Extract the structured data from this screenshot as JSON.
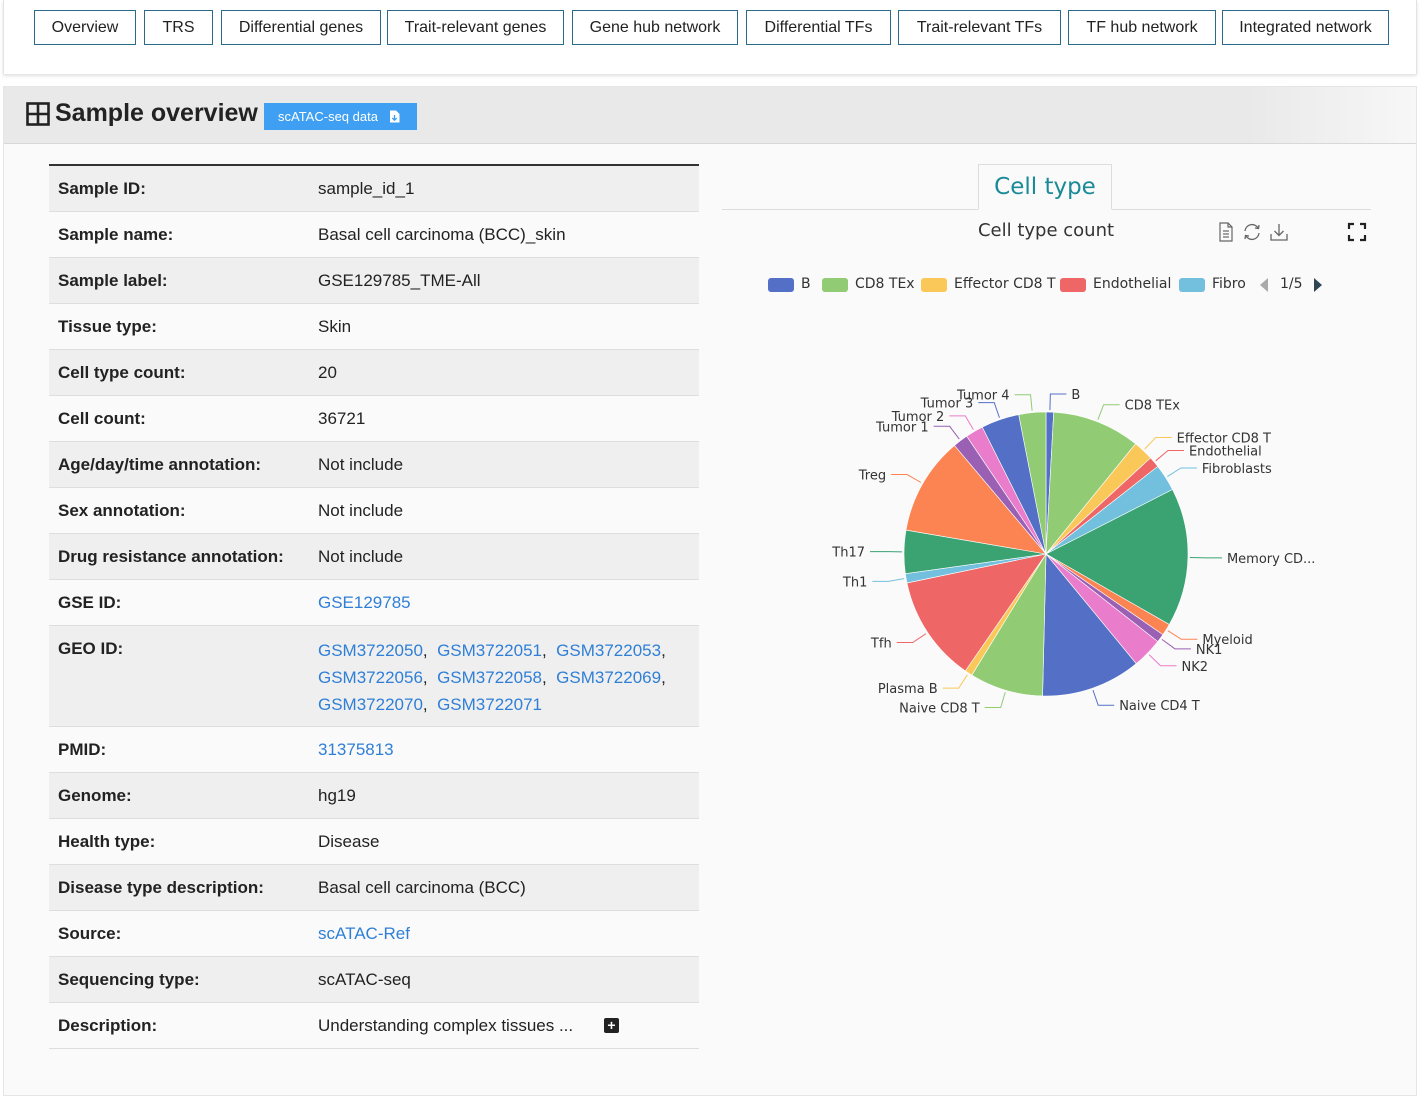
{
  "nav": [
    {
      "label": "Overview"
    },
    {
      "label": "TRS"
    },
    {
      "label": "Differential genes"
    },
    {
      "label": "Trait-relevant genes"
    },
    {
      "label": "Gene hub network"
    },
    {
      "label": "Differential TFs"
    },
    {
      "label": "Trait-relevant TFs"
    },
    {
      "label": "TF hub network"
    },
    {
      "label": "Integrated network"
    }
  ],
  "panel": {
    "title": "Sample overview",
    "data_button": "scATAC-seq data",
    "data_button_icon": "file-download-icon"
  },
  "table": {
    "rows": [
      {
        "label": "Sample ID:",
        "value": "sample_id_1"
      },
      {
        "label": "Sample name:",
        "value": "Basal cell carcinoma (BCC)_skin"
      },
      {
        "label": "Sample label:",
        "value": "GSE129785_TME-All"
      },
      {
        "label": "Tissue type:",
        "value": "Skin"
      },
      {
        "label": "Cell type count:",
        "value": "20"
      },
      {
        "label": "Cell count:",
        "value": "36721"
      },
      {
        "label": "Age/day/time annotation:",
        "value": "Not include"
      },
      {
        "label": "Sex annotation:",
        "value": "Not include"
      },
      {
        "label": "Drug resistance annotation:",
        "value": "Not include"
      },
      {
        "label": "GSE ID:",
        "value": "GSE129785"
      },
      {
        "label": "GEO ID:",
        "value": ""
      },
      {
        "label": "PMID:",
        "value": "31375813"
      },
      {
        "label": "Genome:",
        "value": "hg19"
      },
      {
        "label": "Health type:",
        "value": "Disease"
      },
      {
        "label": "Disease type description:",
        "value": "Basal cell carcinoma (BCC)"
      },
      {
        "label": "Source:",
        "value": "scATAC-Ref"
      },
      {
        "label": "Sequencing type:",
        "value": "scATAC-seq"
      },
      {
        "label": "Description:",
        "value": "Understanding complex tissues  ..."
      }
    ],
    "geo_ids": [
      "GSM3722050",
      "GSM3722051",
      "GSM3722053",
      "GSM3722056",
      "GSM3722058",
      "GSM3722069",
      "GSM3722070",
      "GSM3722071"
    ]
  },
  "chart_tab": {
    "label": "Cell type"
  },
  "chart_toolbar": {
    "icons": [
      "data-view-icon",
      "restore-icon",
      "save-image-icon",
      "fullscreen-icon"
    ]
  },
  "legend": {
    "items": [
      "B",
      "CD8 TEx",
      "Effector CD8 T",
      "Endothelial",
      "Fibro"
    ],
    "page": "1/5"
  },
  "chart_data": {
    "type": "pie",
    "title": "Cell type count",
    "slices": [
      {
        "name": "B",
        "value": 0.9,
        "color": "#5470c6"
      },
      {
        "name": "CD8 TEx",
        "value": 10.4,
        "color": "#91cc75"
      },
      {
        "name": "Effector CD8 T",
        "value": 2.4,
        "color": "#fac858"
      },
      {
        "name": "Endothelial",
        "value": 1.3,
        "color": "#ee6666"
      },
      {
        "name": "Fibroblasts",
        "value": 3.2,
        "color": "#73c0de"
      },
      {
        "name": "Memory CD...",
        "value": 16.4,
        "color": "#3ba272"
      },
      {
        "name": "Myeloid",
        "value": 1.4,
        "color": "#fc8452"
      },
      {
        "name": "NK1",
        "value": 1.0,
        "color": "#9a60b4"
      },
      {
        "name": "NK2",
        "value": 3.6,
        "color": "#ea7ccc"
      },
      {
        "name": "Naive CD4 T",
        "value": 11.8,
        "color": "#5470c6"
      },
      {
        "name": "Naive CD8 T",
        "value": 8.7,
        "color": "#91cc75"
      },
      {
        "name": "Plasma B",
        "value": 0.9,
        "color": "#fac858"
      },
      {
        "name": "Tfh",
        "value": 12.6,
        "color": "#ee6666"
      },
      {
        "name": "Th1",
        "value": 1.1,
        "color": "#73c0de"
      },
      {
        "name": "Th17",
        "value": 5.1,
        "color": "#3ba272"
      },
      {
        "name": "Treg",
        "value": 11.6,
        "color": "#fc8452"
      },
      {
        "name": "Tumor 1",
        "value": 1.8,
        "color": "#9a60b4"
      },
      {
        "name": "Tumor 2",
        "value": 2.1,
        "color": "#ea7ccc"
      },
      {
        "name": "Tumor 3",
        "value": 4.5,
        "color": "#5470c6"
      },
      {
        "name": "Tumor 4",
        "value": 3.2,
        "color": "#91cc75"
      }
    ],
    "legend_placement": "top"
  }
}
